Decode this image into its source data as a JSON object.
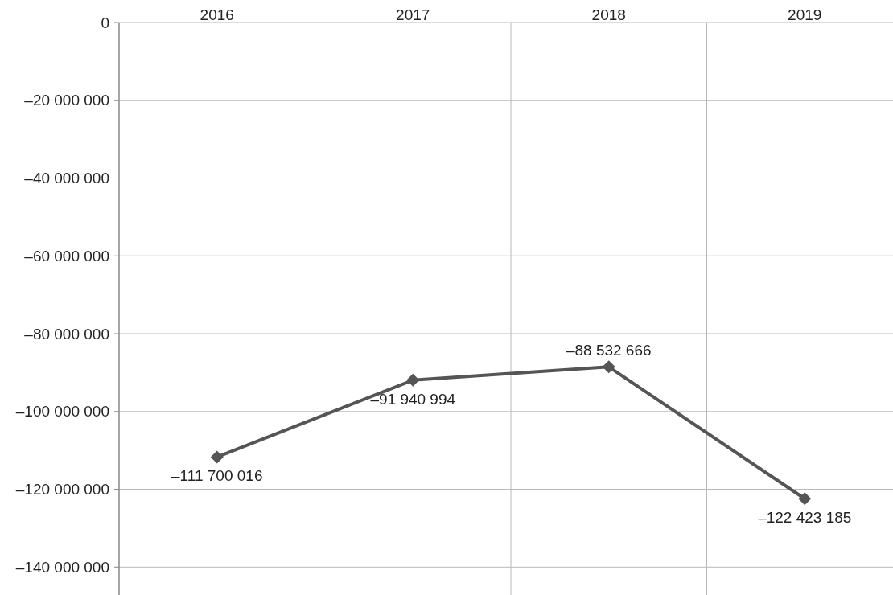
{
  "chart_data": {
    "type": "line",
    "categories": [
      "2016",
      "2017",
      "2018",
      "2019"
    ],
    "series": [
      {
        "color": "#555555",
        "values": [
          -111700016,
          -91940994,
          -88532666,
          -122423185
        ],
        "value_labels": [
          "–111 700 016",
          "–91 940 994",
          "–88 532 666",
          "–122 423 185"
        ]
      }
    ],
    "ylim": [
      -148000000,
      0
    ],
    "yticks": [
      0,
      {
        "value": -20000000,
        "label": "–20 000 000"
      },
      {
        "value": -40000000,
        "label": "–40 000 000"
      },
      {
        "value": -60000000,
        "label": "–60 000 000"
      },
      {
        "value": -80000000,
        "label": "–80 000 000"
      },
      {
        "value": -100000000,
        "label": "–100 000 000"
      },
      {
        "value": -120000000,
        "label": "–120 000 000"
      },
      {
        "value": -140000000,
        "label": "–140 000 000"
      }
    ],
    "grid": true,
    "marker": "diamond",
    "line_style": "solid"
  }
}
